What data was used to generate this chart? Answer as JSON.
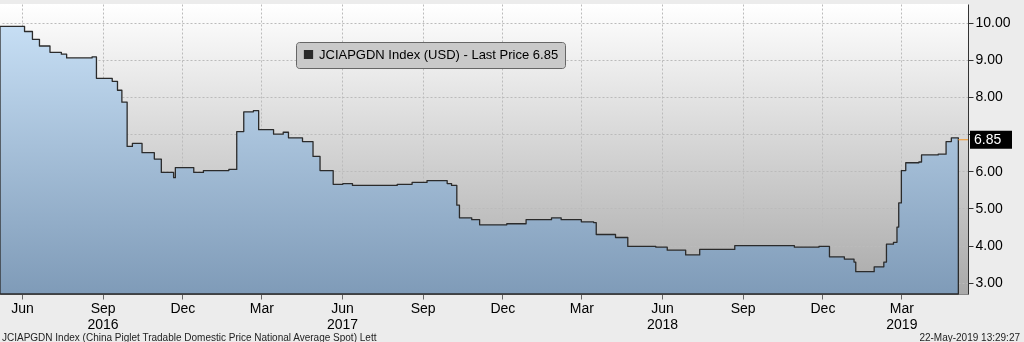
{
  "chart_data": {
    "type": "area",
    "legend": "top",
    "grid": true,
    "line_style": "solid",
    "marker": "none",
    "xlim": [
      "2016-05-07",
      "2019-05-16"
    ],
    "ylim": [
      2.7,
      10.5
    ],
    "xticks": [
      {
        "value": "2016-06-01",
        "label": "Jun"
      },
      {
        "value": "2016-09-01",
        "label": "Sep\n2016"
      },
      {
        "value": "2016-12-01",
        "label": "Dec"
      },
      {
        "value": "2017-03-01",
        "label": "Mar"
      },
      {
        "value": "2017-06-01",
        "label": "Jun\n2017"
      },
      {
        "value": "2017-09-01",
        "label": "Sep"
      },
      {
        "value": "2017-12-01",
        "label": "Dec"
      },
      {
        "value": "2018-03-01",
        "label": "Mar"
      },
      {
        "value": "2018-06-01",
        "label": "Jun\n2018"
      },
      {
        "value": "2018-09-01",
        "label": "Sep"
      },
      {
        "value": "2018-12-01",
        "label": "Dec"
      },
      {
        "value": "2019-03-01",
        "label": "Mar\n2019"
      }
    ],
    "yticks": [
      {
        "value": 3,
        "label": "3.00"
      },
      {
        "value": 4,
        "label": "4.00"
      },
      {
        "value": 5,
        "label": "5.00"
      },
      {
        "value": 6,
        "label": "6.00"
      },
      {
        "value": 7,
        "label": null
      },
      {
        "value": 8,
        "label": "8.00"
      },
      {
        "value": 9,
        "label": "9.00"
      },
      {
        "value": 10,
        "label": "10.00"
      }
    ],
    "x": [
      "2016-05-07",
      "2016-06-04",
      "2016-06-13",
      "2016-06-21",
      "2016-07-03",
      "2016-07-16",
      "2016-07-22",
      "2016-08-20",
      "2016-08-25",
      "2016-09-12",
      "2016-09-18",
      "2016-09-23",
      "2016-09-29",
      "2016-10-05",
      "2016-10-16",
      "2016-10-30",
      "2016-11-07",
      "2016-11-21",
      "2016-11-23",
      "2016-12-14",
      "2016-12-25",
      "2017-01-23",
      "2017-02-01",
      "2017-02-09",
      "2017-02-20",
      "2017-02-26",
      "2017-03-15",
      "2017-03-26",
      "2017-04-01",
      "2017-04-17",
      "2017-04-29",
      "2017-05-07",
      "2017-05-19",
      "2017-05-22",
      "2017-06-02",
      "2017-06-13",
      "2017-07-11",
      "2017-08-03",
      "2017-08-20",
      "2017-09-06",
      "2017-09-29",
      "2017-10-04",
      "2017-10-10",
      "2017-10-13",
      "2017-10-27",
      "2017-11-05",
      "2017-12-06",
      "2017-12-28",
      "2018-01-26",
      "2018-02-06",
      "2018-03-01",
      "2018-03-15",
      "2018-03-18",
      "2018-04-09",
      "2018-04-23",
      "2018-05-25",
      "2018-06-07",
      "2018-06-28",
      "2018-07-14",
      "2018-08-23",
      "2018-09-26",
      "2018-10-30",
      "2018-11-27",
      "2018-12-09",
      "2018-12-26",
      "2019-01-06",
      "2019-01-08",
      "2019-01-29",
      "2019-02-09",
      "2019-02-12",
      "2019-02-20",
      "2019-02-24",
      "2019-02-26",
      "2019-03-01",
      "2019-03-06",
      "2019-03-21",
      "2019-03-24",
      "2019-04-12",
      "2019-04-21",
      "2019-04-27",
      "2019-05-05"
    ],
    "series": [
      {
        "name": "JCIAPGDN Index (USD) - Last Price 6.85",
        "color": "#2b2b2b",
        "values": [
          9.9,
          9.76,
          9.55,
          9.37,
          9.2,
          9.15,
          9.05,
          9.08,
          8.5,
          8.42,
          8.18,
          7.86,
          6.67,
          6.75,
          6.5,
          6.33,
          5.97,
          5.83,
          6.1,
          5.97,
          6.02,
          6.05,
          7.07,
          7.6,
          7.63,
          7.12,
          7.0,
          7.05,
          6.9,
          6.8,
          6.4,
          6.02,
          6.02,
          5.65,
          5.67,
          5.62,
          5.62,
          5.65,
          5.7,
          5.75,
          5.67,
          5.62,
          5.09,
          4.75,
          4.7,
          4.56,
          4.59,
          4.7,
          4.75,
          4.7,
          4.64,
          4.62,
          4.3,
          4.22,
          3.98,
          3.96,
          3.88,
          3.75,
          3.9,
          4.0,
          4.0,
          3.96,
          3.98,
          3.7,
          3.64,
          3.56,
          3.3,
          3.43,
          3.56,
          4.04,
          4.09,
          4.5,
          5.15,
          6.02,
          6.23,
          6.25,
          6.44,
          6.46,
          6.8,
          6.9,
          6.85
        ]
      }
    ],
    "annotations": [
      {
        "text": "6.85",
        "x": "2019-05-05",
        "y": 6.85
      },
      "JCIAPGDN Index (China Piglet Tradable Domestic Price National Average Spot) Lett",
      "22-May-2019 13:29:27"
    ]
  }
}
